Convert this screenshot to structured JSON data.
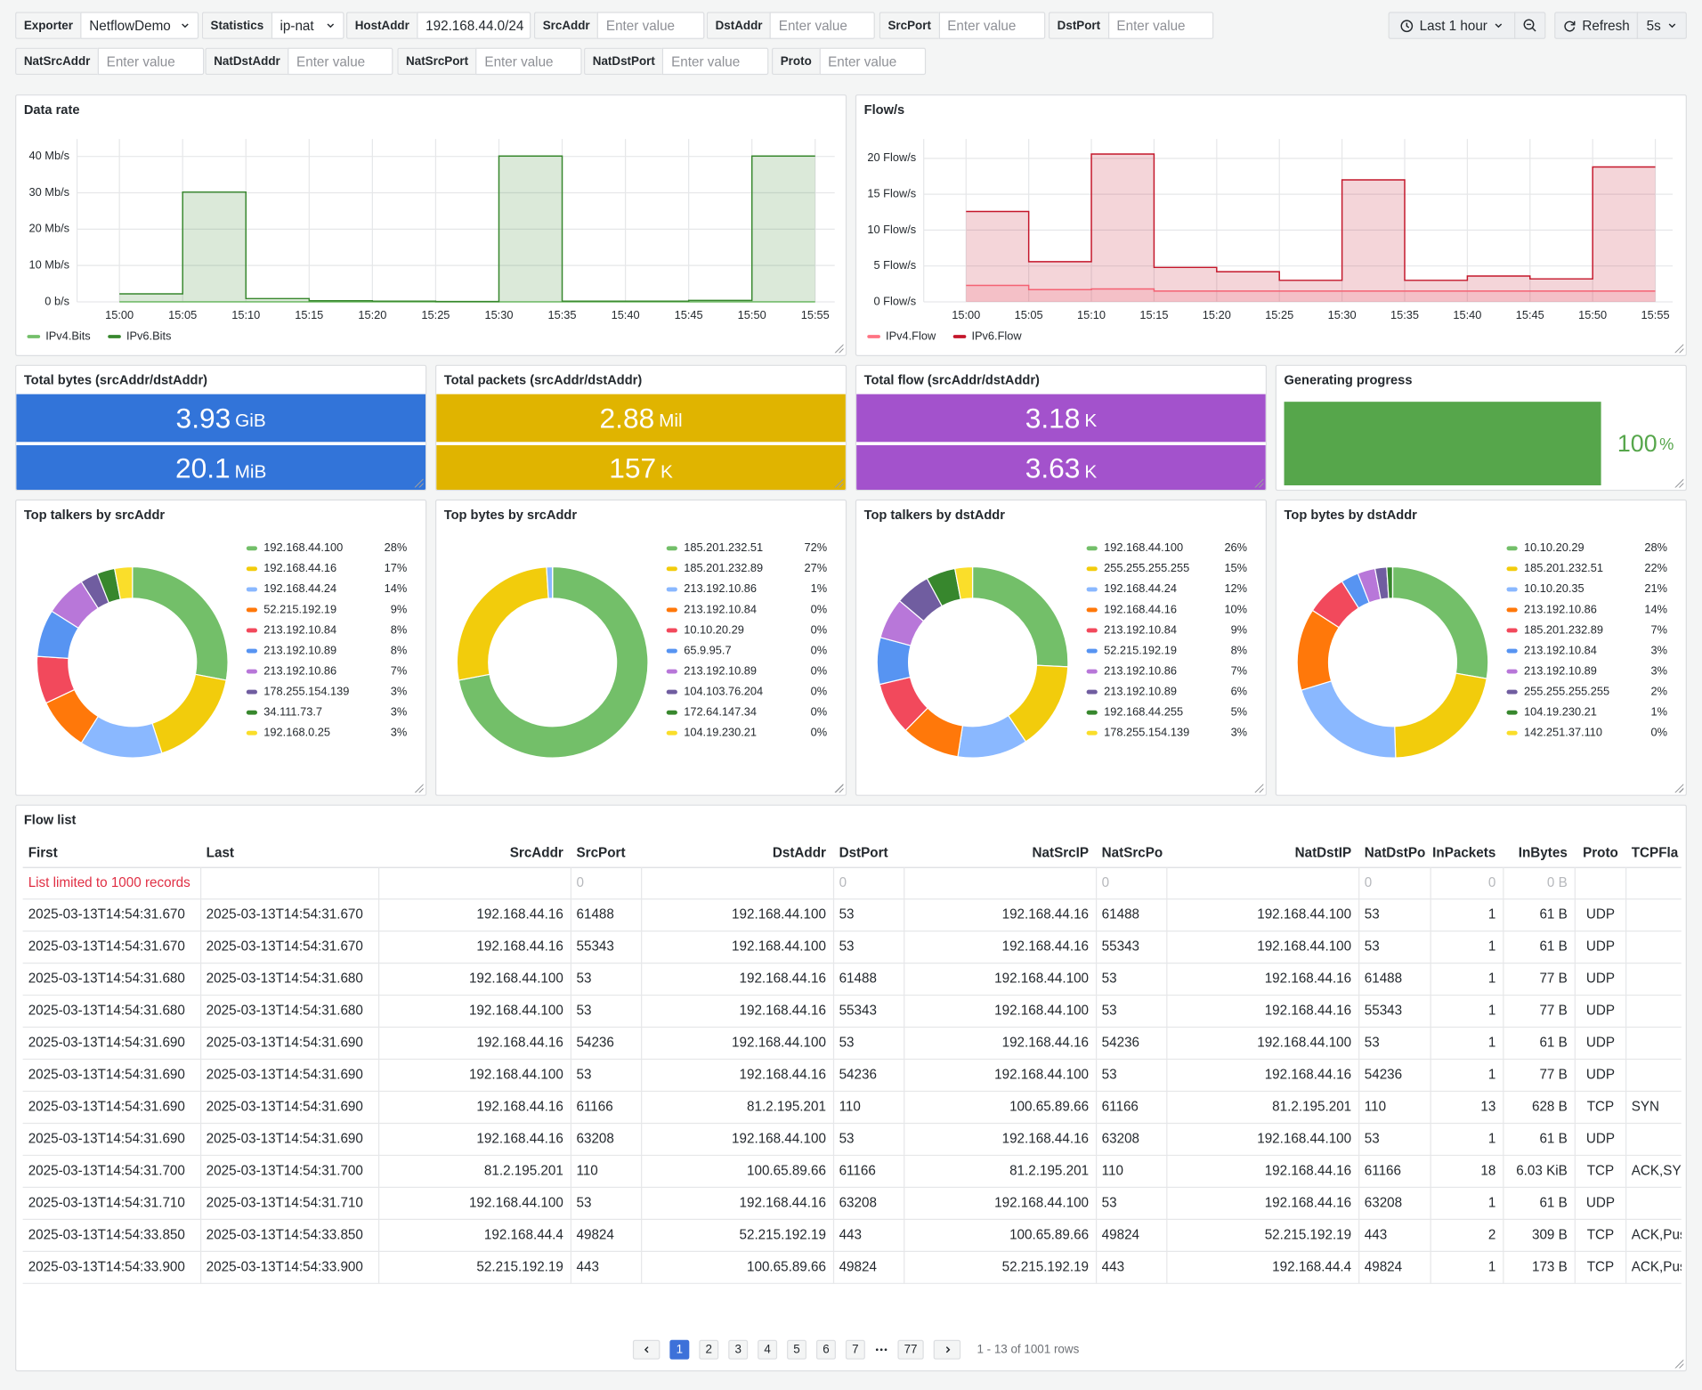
{
  "variables": [
    {
      "label": "Exporter",
      "value": "NetflowDemo",
      "dropdown": true
    },
    {
      "label": "Statistics",
      "value": "ip-nat",
      "dropdown": true
    },
    {
      "label": "HostAddr",
      "value": "192.168.44.0/24"
    },
    {
      "label": "SrcAddr",
      "placeholder": "Enter value"
    },
    {
      "label": "DstAddr",
      "placeholder": "Enter value"
    },
    {
      "label": "SrcPort",
      "placeholder": "Enter value"
    },
    {
      "label": "DstPort",
      "placeholder": "Enter value"
    },
    {
      "label": "NatSrcAddr",
      "placeholder": "Enter value"
    },
    {
      "label": "NatDstAddr",
      "placeholder": "Enter value"
    },
    {
      "label": "NatSrcPort",
      "placeholder": "Enter value"
    },
    {
      "label": "NatDstPort",
      "placeholder": "Enter value"
    },
    {
      "label": "Proto",
      "placeholder": "Enter value"
    }
  ],
  "time_picker": {
    "range": "Last 1 hour",
    "refresh": "Refresh",
    "interval": "5s"
  },
  "panels": {
    "data_rate": {
      "type": "line",
      "title": "Data rate",
      "step": true,
      "x": [
        "15:00",
        "15:05",
        "15:10",
        "15:15",
        "15:20",
        "15:25",
        "15:30",
        "15:35",
        "15:40",
        "15:45",
        "15:50",
        "15:55"
      ],
      "series": [
        {
          "name": "IPv4.Bits",
          "color": "#73bf69",
          "values": [
            0,
            0,
            0,
            0,
            0,
            0,
            0,
            0,
            0,
            0,
            0,
            0
          ]
        },
        {
          "name": "IPv6.Bits",
          "color": "#37872d",
          "values": [
            2.2,
            30.2,
            0.9,
            0.3,
            0.2,
            0.1,
            40.1,
            0.2,
            0.2,
            0.4,
            40.1,
            40.1
          ]
        }
      ],
      "ylim": [
        0,
        44.8
      ],
      "yticks": [
        {
          "value": 0,
          "label": "0 b/s"
        },
        {
          "value": 10,
          "label": "10 Mb/s"
        },
        {
          "value": 20,
          "label": "20 Mb/s"
        },
        {
          "value": 30,
          "label": "30 Mb/s"
        },
        {
          "value": 40,
          "label": "40 Mb/s"
        }
      ]
    },
    "flow_rate": {
      "type": "line",
      "title": "Flow/s",
      "step": true,
      "x": [
        "15:00",
        "15:05",
        "15:10",
        "15:15",
        "15:20",
        "15:25",
        "15:30",
        "15:35",
        "15:40",
        "15:45",
        "15:50",
        "15:55"
      ],
      "series": [
        {
          "name": "IPv4.Flow",
          "color": "#ff7383",
          "values": [
            2.3,
            1.7,
            1.8,
            1.5,
            1.5,
            1.5,
            1.5,
            1.5,
            1.5,
            1.5,
            1.5,
            1.5
          ]
        },
        {
          "name": "IPv6.Flow",
          "color": "#c4162a",
          "values": [
            12.6,
            5.6,
            20.6,
            4.8,
            4.2,
            3.0,
            17.0,
            3.0,
            3.6,
            3.2,
            18.8,
            18.8
          ]
        }
      ],
      "ylim": [
        0,
        22.7
      ],
      "yticks": [
        {
          "value": 0,
          "label": "0 Flow/s"
        },
        {
          "value": 5,
          "label": "5 Flow/s"
        },
        {
          "value": 10,
          "label": "10 Flow/s"
        },
        {
          "value": 15,
          "label": "15 Flow/s"
        },
        {
          "value": 20,
          "label": "20 Flow/s"
        }
      ]
    },
    "stats": [
      {
        "title": "Total bytes (srcAddr/dstAddr)",
        "color": "#3274d9",
        "items": [
          {
            "value": 3.93,
            "unit": "GiB"
          },
          {
            "value": 20.1,
            "unit": "MiB"
          }
        ]
      },
      {
        "title": "Total packets (srcAddr/dstAddr)",
        "color": "#e0b400",
        "items": [
          {
            "value": 2.88,
            "unit": "Mil"
          },
          {
            "value": 157,
            "unit": "K"
          }
        ]
      },
      {
        "title": "Total flow (srcAddr/dstAddr)",
        "color": "#a352cc",
        "items": [
          {
            "value": 3.18,
            "unit": "K"
          },
          {
            "value": 3.63,
            "unit": "K"
          }
        ]
      }
    ],
    "progress": {
      "title": "Generating progress",
      "value": 100,
      "unit": "%",
      "color": "#56a64b"
    },
    "pies": [
      {
        "type": "pie",
        "title": "Top talkers by srcAddr",
        "categories": [
          "192.168.44.100",
          "192.168.44.16",
          "192.168.44.24",
          "52.215.192.19",
          "213.192.10.84",
          "213.192.10.89",
          "213.192.10.86",
          "178.255.154.139",
          "34.111.73.7",
          "192.168.0.25"
        ],
        "values": [
          28,
          17,
          14,
          9,
          8,
          8,
          7,
          3,
          3,
          3
        ],
        "value_labels": [
          "28%",
          "17%",
          "14%",
          "9%",
          "8%",
          "8%",
          "7%",
          "3%",
          "3%",
          "3%"
        ],
        "colors": [
          "#73bf69",
          "#f2cc0c",
          "#8ab8ff",
          "#ff780a",
          "#f2495c",
          "#5794f2",
          "#b877d9",
          "#705da0",
          "#37872d",
          "#fade2a"
        ]
      },
      {
        "type": "pie",
        "title": "Top bytes by srcAddr",
        "categories": [
          "185.201.232.51",
          "185.201.232.89",
          "213.192.10.86",
          "213.192.10.84",
          "10.10.20.29",
          "65.9.95.7",
          "213.192.10.89",
          "104.103.76.204",
          "172.64.147.34",
          "104.19.230.21"
        ],
        "values": [
          72,
          27,
          1,
          0,
          0,
          0,
          0,
          0,
          0,
          0
        ],
        "value_labels": [
          "72%",
          "27%",
          "1%",
          "0%",
          "0%",
          "0%",
          "0%",
          "0%",
          "0%",
          "0%"
        ],
        "colors": [
          "#73bf69",
          "#f2cc0c",
          "#8ab8ff",
          "#ff780a",
          "#f2495c",
          "#5794f2",
          "#b877d9",
          "#705da0",
          "#37872d",
          "#fade2a"
        ]
      },
      {
        "type": "pie",
        "title": "Top talkers by dstAddr",
        "categories": [
          "192.168.44.100",
          "255.255.255.255",
          "192.168.44.24",
          "192.168.44.16",
          "213.192.10.84",
          "52.215.192.19",
          "213.192.10.86",
          "213.192.10.89",
          "192.168.44.255",
          "178.255.154.139"
        ],
        "values": [
          26,
          15,
          12,
          10,
          9,
          8,
          7,
          6,
          5,
          3
        ],
        "value_labels": [
          "26%",
          "15%",
          "12%",
          "10%",
          "9%",
          "8%",
          "7%",
          "6%",
          "5%",
          "3%"
        ],
        "colors": [
          "#73bf69",
          "#f2cc0c",
          "#8ab8ff",
          "#ff780a",
          "#f2495c",
          "#5794f2",
          "#b877d9",
          "#705da0",
          "#37872d",
          "#fade2a"
        ]
      },
      {
        "type": "pie",
        "title": "Top bytes by dstAddr",
        "categories": [
          "10.10.20.29",
          "185.201.232.51",
          "10.10.20.35",
          "213.192.10.86",
          "185.201.232.89",
          "213.192.10.84",
          "213.192.10.89",
          "255.255.255.255",
          "104.19.230.21",
          "142.251.37.110"
        ],
        "values": [
          28,
          22,
          21,
          14,
          7,
          3,
          3,
          2,
          1,
          0
        ],
        "value_labels": [
          "28%",
          "22%",
          "21%",
          "14%",
          "7%",
          "3%",
          "3%",
          "2%",
          "1%",
          "0%"
        ],
        "colors": [
          "#73bf69",
          "#f2cc0c",
          "#8ab8ff",
          "#ff780a",
          "#f2495c",
          "#5794f2",
          "#b877d9",
          "#705da0",
          "#37872d",
          "#fade2a"
        ]
      }
    ]
  },
  "flow_list": {
    "title": "Flow list",
    "columns": [
      "First",
      "Last",
      "SrcAddr",
      "SrcPort",
      "DstAddr",
      "DstPort",
      "NatSrcIP",
      "NatSrcPo",
      "NatDstIP",
      "NatDstPo",
      "InPackets",
      "InBytes",
      "Proto",
      "TCPFla"
    ],
    "filter_row": [
      "List limited to 1000 records",
      null,
      null,
      "0",
      null,
      "0",
      null,
      "0",
      null,
      "0",
      "0",
      "0 B",
      null,
      null
    ],
    "rows": [
      [
        "2025-03-13T14:54:31.670",
        "2025-03-13T14:54:31.670",
        "192.168.44.16",
        "61488",
        "192.168.44.100",
        "53",
        "192.168.44.16",
        "61488",
        "192.168.44.100",
        "53",
        "1",
        "61 B",
        "UDP",
        null
      ],
      [
        "2025-03-13T14:54:31.670",
        "2025-03-13T14:54:31.670",
        "192.168.44.16",
        "55343",
        "192.168.44.100",
        "53",
        "192.168.44.16",
        "55343",
        "192.168.44.100",
        "53",
        "1",
        "61 B",
        "UDP",
        null
      ],
      [
        "2025-03-13T14:54:31.680",
        "2025-03-13T14:54:31.680",
        "192.168.44.100",
        "53",
        "192.168.44.16",
        "61488",
        "192.168.44.100",
        "53",
        "192.168.44.16",
        "61488",
        "1",
        "77 B",
        "UDP",
        null
      ],
      [
        "2025-03-13T14:54:31.680",
        "2025-03-13T14:54:31.680",
        "192.168.44.100",
        "53",
        "192.168.44.16",
        "55343",
        "192.168.44.100",
        "53",
        "192.168.44.16",
        "55343",
        "1",
        "77 B",
        "UDP",
        null
      ],
      [
        "2025-03-13T14:54:31.690",
        "2025-03-13T14:54:31.690",
        "192.168.44.16",
        "54236",
        "192.168.44.100",
        "53",
        "192.168.44.16",
        "54236",
        "192.168.44.100",
        "53",
        "1",
        "61 B",
        "UDP",
        null
      ],
      [
        "2025-03-13T14:54:31.690",
        "2025-03-13T14:54:31.690",
        "192.168.44.100",
        "53",
        "192.168.44.16",
        "54236",
        "192.168.44.100",
        "53",
        "192.168.44.16",
        "54236",
        "1",
        "77 B",
        "UDP",
        null
      ],
      [
        "2025-03-13T14:54:31.690",
        "2025-03-13T14:54:31.690",
        "192.168.44.16",
        "61166",
        "81.2.195.201",
        "110",
        "100.65.89.66",
        "61166",
        "81.2.195.201",
        "110",
        "13",
        "628 B",
        "TCP",
        "SYN"
      ],
      [
        "2025-03-13T14:54:31.690",
        "2025-03-13T14:54:31.690",
        "192.168.44.16",
        "63208",
        "192.168.44.100",
        "53",
        "192.168.44.16",
        "63208",
        "192.168.44.100",
        "53",
        "1",
        "61 B",
        "UDP",
        null
      ],
      [
        "2025-03-13T14:54:31.700",
        "2025-03-13T14:54:31.700",
        "81.2.195.201",
        "110",
        "100.65.89.66",
        "61166",
        "81.2.195.201",
        "110",
        "192.168.44.16",
        "61166",
        "18",
        "6.03 KiB",
        "TCP",
        "ACK,SY"
      ],
      [
        "2025-03-13T14:54:31.710",
        "2025-03-13T14:54:31.710",
        "192.168.44.100",
        "53",
        "192.168.44.16",
        "63208",
        "192.168.44.100",
        "53",
        "192.168.44.16",
        "63208",
        "1",
        "61 B",
        "UDP",
        null
      ],
      [
        "2025-03-13T14:54:33.850",
        "2025-03-13T14:54:33.850",
        "192.168.44.4",
        "49824",
        "52.215.192.19",
        "443",
        "100.65.89.66",
        "49824",
        "52.215.192.19",
        "443",
        "2",
        "309 B",
        "TCP",
        "ACK,Pus"
      ],
      [
        "2025-03-13T14:54:33.900",
        "2025-03-13T14:54:33.900",
        "52.215.192.19",
        "443",
        "100.65.89.66",
        "49824",
        "52.215.192.19",
        "443",
        "192.168.44.4",
        "49824",
        "1",
        "173 B",
        "TCP",
        "ACK,Pus"
      ]
    ],
    "pagination": {
      "pages": [
        1,
        2,
        3,
        4,
        5,
        6,
        7
      ],
      "last": 77,
      "current": 1,
      "summary": "1 - 13 of 1001 rows"
    }
  }
}
